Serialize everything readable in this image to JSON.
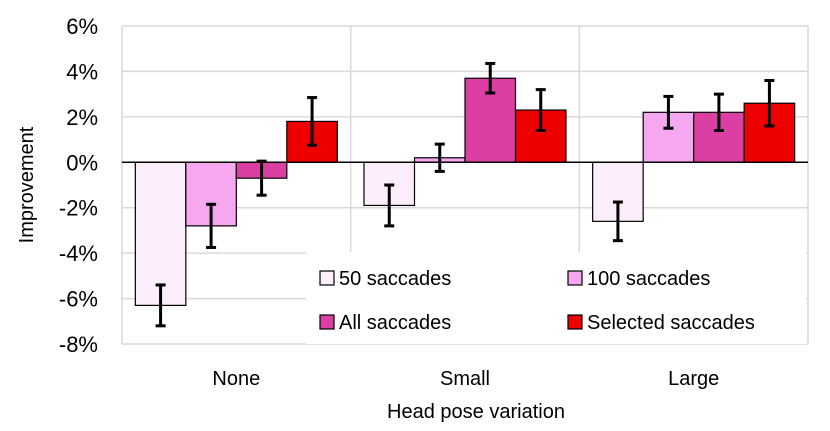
{
  "chart_data": {
    "type": "bar",
    "title": "",
    "xlabel": "Head pose variation",
    "ylabel": "Improvement",
    "categories": [
      "None",
      "Small",
      "Large"
    ],
    "ylim": [
      -8,
      6
    ],
    "yticks": [
      -8,
      -6,
      -4,
      -2,
      0,
      2,
      4,
      6
    ],
    "ytick_labels": [
      "-8%",
      "-6%",
      "-4%",
      "-2%",
      "0%",
      "2%",
      "4%",
      "6%"
    ],
    "unit": "%",
    "grid": true,
    "legend_position": "bottom-right",
    "series": [
      {
        "name": "50 saccades",
        "color": "#fdeefb",
        "values": [
          -6.3,
          -1.9,
          -2.6
        ],
        "errors": [
          0.9,
          0.9,
          0.85
        ]
      },
      {
        "name": "100 saccades",
        "color": "#f5a8f0",
        "values": [
          -2.8,
          0.2,
          2.2
        ],
        "errors": [
          0.95,
          0.6,
          0.7
        ]
      },
      {
        "name": "All saccades",
        "color": "#dc3fa4",
        "values": [
          -0.7,
          3.7,
          2.2
        ],
        "errors": [
          0.75,
          0.65,
          0.8
        ]
      },
      {
        "name": "Selected saccades",
        "color": "#ee0000",
        "values": [
          1.8,
          2.3,
          2.6
        ],
        "errors": [
          1.05,
          0.9,
          1.0
        ]
      }
    ]
  }
}
